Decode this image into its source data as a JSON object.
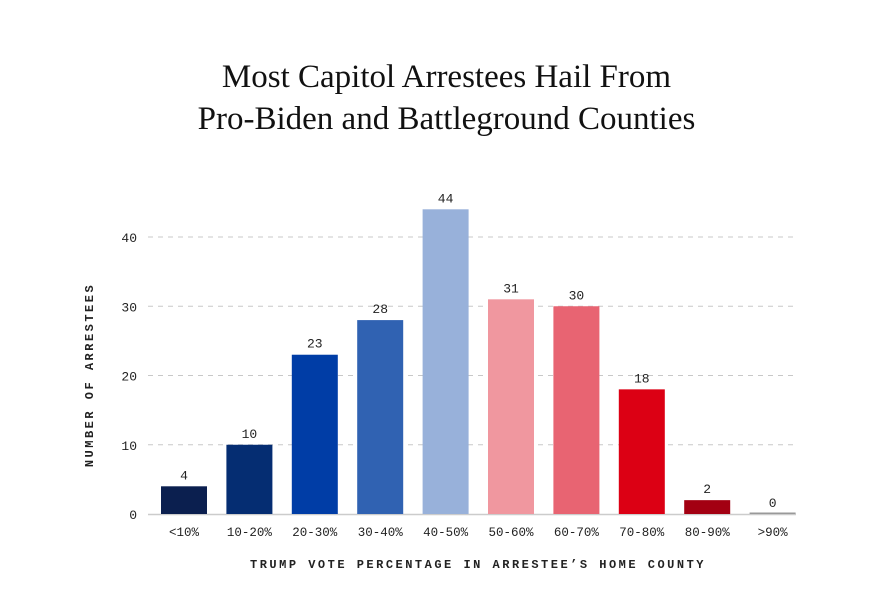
{
  "chart_data": {
    "type": "bar",
    "title": [
      "Most Capitol Arrestees Hail From",
      "Pro-Biden and Battleground Counties"
    ],
    "xlabel": "TRUMP VOTE PERCENTAGE IN ARRESTEE’S HOME COUNTY",
    "ylabel": "NUMBER OF ARRESTEES",
    "categories": [
      "<10%",
      "10-20%",
      "20-30%",
      "30-40%",
      "40-50%",
      "50-60%",
      "60-70%",
      "70-80%",
      "80-90%",
      ">90%"
    ],
    "values": [
      4,
      10,
      23,
      28,
      44,
      31,
      30,
      18,
      2,
      0
    ],
    "colors": [
      "#0b1f4f",
      "#052d72",
      "#003da6",
      "#3062b2",
      "#98b1da",
      "#f0979f",
      "#e86472",
      "#dc0014",
      "#a30012",
      "#999999"
    ],
    "yticks": [
      0,
      10,
      20,
      30,
      40
    ],
    "ylim": [
      0,
      44
    ],
    "grid": true,
    "data_labels": true
  }
}
